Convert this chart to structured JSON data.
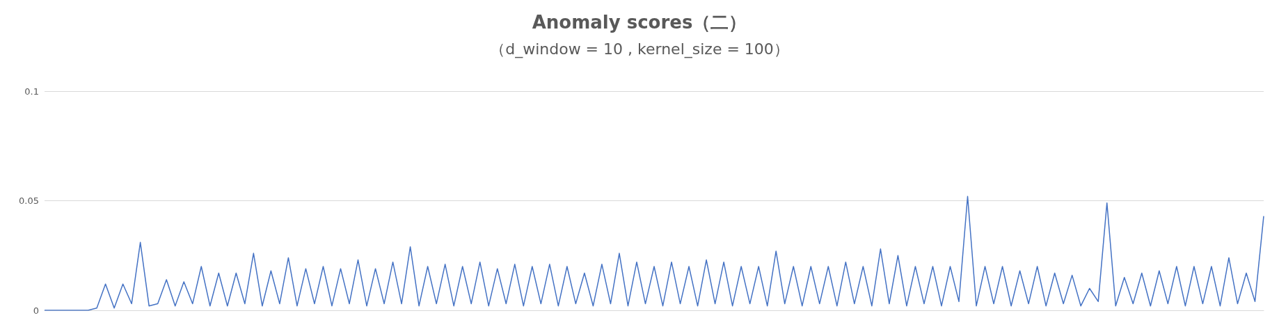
{
  "chart_data": {
    "type": "line",
    "title": "Anomaly scores（二）",
    "subtitle": "（d_window = 10 , kernel_size = 100）",
    "categories": [
      null,
      null,
      null,
      null,
      null,
      null,
      null,
      null,
      null,
      null,
      null,
      null,
      null,
      null,
      null,
      null,
      null,
      null,
      null,
      null,
      null,
      null,
      null,
      null,
      null,
      null,
      null,
      null,
      null,
      null,
      null,
      null,
      null,
      null,
      null,
      null,
      null,
      null,
      null,
      null,
      null,
      null,
      null,
      null,
      null,
      null,
      null,
      null,
      null,
      null,
      null,
      null,
      null,
      null,
      null,
      null,
      null,
      null,
      null,
      null,
      null,
      null,
      null,
      null,
      null,
      null,
      null,
      null,
      null,
      null,
      null,
      null,
      null,
      null,
      null,
      null,
      null,
      null,
      null,
      null,
      null,
      null,
      null,
      null,
      null,
      null,
      null,
      null,
      null,
      null,
      null,
      null,
      null,
      null,
      null,
      null,
      null,
      null,
      null,
      null,
      null,
      null,
      null,
      null,
      null,
      null,
      null,
      null,
      null,
      null,
      null,
      null,
      null,
      null,
      null,
      null,
      null,
      null,
      null,
      null,
      null,
      null,
      null,
      null,
      null,
      null,
      null,
      null,
      null,
      null,
      null,
      null,
      null,
      null,
      null,
      null,
      null,
      null,
      null,
      null,
      null
    ],
    "series": [
      {
        "color": "#4472c4",
        "values": [
          0,
          0,
          0,
          0,
          0,
          0,
          0.001,
          0.012,
          0.001,
          0.012,
          0.003,
          0.031,
          0.002,
          0.003,
          0.014,
          0.002,
          0.013,
          0.003,
          0.02,
          0.002,
          0.017,
          0.002,
          0.017,
          0.003,
          0.026,
          0.002,
          0.018,
          0.003,
          0.024,
          0.002,
          0.019,
          0.003,
          0.02,
          0.002,
          0.019,
          0.003,
          0.023,
          0.002,
          0.019,
          0.003,
          0.022,
          0.003,
          0.029,
          0.002,
          0.02,
          0.003,
          0.021,
          0.002,
          0.02,
          0.003,
          0.022,
          0.002,
          0.019,
          0.003,
          0.021,
          0.002,
          0.02,
          0.003,
          0.021,
          0.002,
          0.02,
          0.003,
          0.017,
          0.002,
          0.021,
          0.003,
          0.026,
          0.002,
          0.022,
          0.003,
          0.02,
          0.002,
          0.022,
          0.003,
          0.02,
          0.002,
          0.023,
          0.003,
          0.022,
          0.002,
          0.02,
          0.003,
          0.02,
          0.002,
          0.027,
          0.003,
          0.02,
          0.002,
          0.02,
          0.003,
          0.02,
          0.002,
          0.022,
          0.003,
          0.02,
          0.002,
          0.028,
          0.003,
          0.025,
          0.002,
          0.02,
          0.003,
          0.02,
          0.002,
          0.02,
          0.004,
          0.052,
          0.002,
          0.02,
          0.003,
          0.02,
          0.002,
          0.018,
          0.003,
          0.02,
          0.002,
          0.017,
          0.003,
          0.016,
          0.002,
          0.01,
          0.004,
          0.049,
          0.002,
          0.015,
          0.003,
          0.017,
          0.002,
          0.018,
          0.003,
          0.02,
          0.002,
          0.02,
          0.003,
          0.02,
          0.002,
          0.024,
          0.003,
          0.017,
          0.004,
          0.043
        ]
      }
    ],
    "ylim": [
      0,
      0.1
    ],
    "yticks": [
      0,
      0.05,
      0.1
    ],
    "grid": "y",
    "tick_labels": "y",
    "marker": "none",
    "line_style": "solid"
  }
}
